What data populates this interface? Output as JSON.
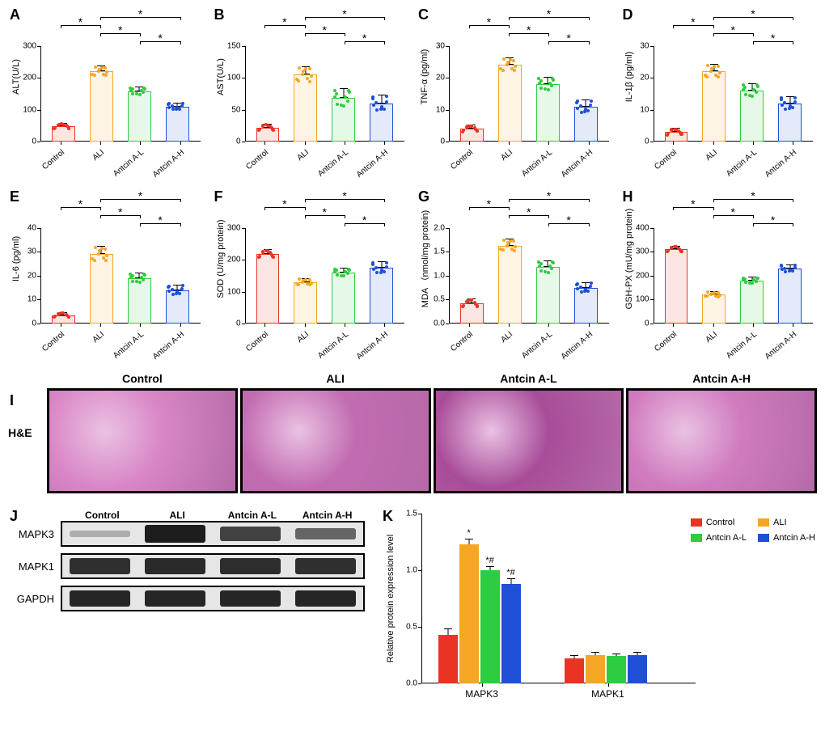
{
  "colors": {
    "control": "#ea3323",
    "ali": "#f5a623",
    "antcinL": "#2ecc40",
    "antcinH": "#1f4fd6",
    "control_fill": "rgba(234,51,35,0.12)",
    "ali_fill": "rgba(245,166,35,0.12)",
    "antcinL_fill": "rgba(46,204,64,0.12)",
    "antcinH_fill": "rgba(31,79,214,0.12)"
  },
  "groups": [
    "Control",
    "ALI",
    "Antcin A-L",
    "Antcin A-H"
  ],
  "panels": {
    "A": {
      "ylabel": "ALT(U/L)",
      "ymax": 300,
      "ystep": 100,
      "values": [
        48,
        220,
        158,
        110
      ],
      "err": [
        8,
        15,
        12,
        10
      ],
      "sig": [
        [
          0,
          1
        ],
        [
          1,
          2
        ],
        [
          1,
          3
        ],
        [
          2,
          3
        ]
      ]
    },
    "B": {
      "ylabel": "AST(U/L)",
      "ymax": 150,
      "ystep": 50,
      "values": [
        22,
        105,
        68,
        60
      ],
      "err": [
        5,
        12,
        14,
        12
      ],
      "sig": [
        [
          0,
          1
        ],
        [
          1,
          2
        ],
        [
          1,
          3
        ],
        [
          2,
          3
        ]
      ]
    },
    "C": {
      "ylabel": "TNF-α (pg/ml)",
      "ymax": 30,
      "ystep": 10,
      "values": [
        4,
        24,
        18,
        11
      ],
      "err": [
        1,
        2,
        2,
        2
      ],
      "sig": [
        [
          0,
          1
        ],
        [
          1,
          2
        ],
        [
          1,
          3
        ],
        [
          2,
          3
        ]
      ]
    },
    "D": {
      "ylabel": "IL-1β (pg/ml)",
      "ymax": 30,
      "ystep": 10,
      "values": [
        3,
        22,
        16,
        12
      ],
      "err": [
        1,
        2,
        2,
        2
      ],
      "sig": [
        [
          0,
          1
        ],
        [
          1,
          2
        ],
        [
          1,
          3
        ],
        [
          2,
          3
        ]
      ]
    },
    "E": {
      "ylabel": "IL-6  (pg/ml)",
      "ymax": 40,
      "ystep": 10,
      "values": [
        3.5,
        29,
        19,
        14
      ],
      "err": [
        1,
        3,
        2,
        2
      ],
      "sig": [
        [
          0,
          1
        ],
        [
          1,
          2
        ],
        [
          1,
          3
        ],
        [
          2,
          3
        ]
      ]
    },
    "F": {
      "ylabel": "SOD (U/mg protein)",
      "ymax": 300,
      "ystep": 100,
      "values": [
        218,
        130,
        160,
        175
      ],
      "err": [
        12,
        10,
        12,
        18
      ],
      "sig": [
        [
          0,
          1
        ],
        [
          1,
          2
        ],
        [
          1,
          3
        ],
        [
          2,
          3
        ]
      ]
    },
    "G": {
      "ylabel": "MDA （nmol/mg protein)",
      "ymax": 2.0,
      "ystep": 0.5,
      "values": [
        0.42,
        1.63,
        1.18,
        0.75
      ],
      "err": [
        0.08,
        0.12,
        0.12,
        0.1
      ],
      "sig": [
        [
          0,
          1
        ],
        [
          1,
          2
        ],
        [
          1,
          3
        ],
        [
          2,
          3
        ]
      ]
    },
    "H": {
      "ylabel": "GSH-PX (mU/mg protein)",
      "ymax": 400,
      "ystep": 100,
      "values": [
        310,
        122,
        180,
        230
      ],
      "err": [
        12,
        10,
        12,
        14
      ],
      "sig": [
        [
          0,
          1
        ],
        [
          1,
          2
        ],
        [
          1,
          3
        ],
        [
          2,
          3
        ]
      ]
    }
  },
  "histo": {
    "label": "H&E",
    "titles": [
      "Control",
      "ALI",
      "Antcin A-L",
      "Antcin A-H"
    ],
    "colors": [
      "#d986c6",
      "#c26bb1",
      "#a84c99",
      "#d07bbf"
    ]
  },
  "blot": {
    "conditions": [
      "Control",
      "ALI",
      "Antcin A-L",
      "Antcin A-H"
    ],
    "rows": [
      {
        "label": "MAPK3",
        "intensities": [
          0.15,
          0.95,
          0.75,
          0.55
        ],
        "bg": "#ddd"
      },
      {
        "label": "MAPK1",
        "intensities": [
          0.85,
          0.88,
          0.86,
          0.85
        ],
        "bg": "#ddd"
      },
      {
        "label": "GAPDH",
        "intensities": [
          0.9,
          0.9,
          0.9,
          0.9
        ],
        "bg": "#ddd"
      }
    ]
  },
  "grouped": {
    "ylabel": "Relative protein expression level",
    "ymax": 1.5,
    "ystep": 0.5,
    "xcats": [
      "MAPK3",
      "MAPK1"
    ],
    "legend": [
      "Control",
      "ALI",
      "Antcin A-L",
      "Antcin A-H"
    ],
    "data": {
      "MAPK3": [
        0.43,
        1.23,
        1.0,
        0.88
      ],
      "MAPK1": [
        0.22,
        0.25,
        0.24,
        0.25
      ]
    },
    "err": {
      "MAPK3": [
        0.05,
        0.04,
        0.03,
        0.04
      ],
      "MAPK1": [
        0.02,
        0.02,
        0.02,
        0.02
      ]
    },
    "annot": {
      "MAPK3": [
        "",
        "*",
        "*#",
        "*#"
      ],
      "MAPK1": [
        "",
        "",
        "",
        ""
      ]
    }
  },
  "panel_labels": {
    "I": "I",
    "J": "J",
    "K": "K"
  }
}
